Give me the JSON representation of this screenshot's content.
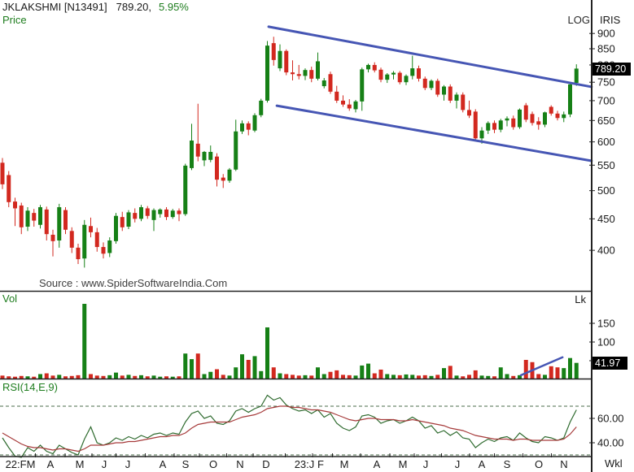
{
  "header": {
    "symbol": "JKLAKSHMI [N13491]",
    "last_price": "789.20,",
    "change_pct": "5.95%"
  },
  "price_panel": {
    "label": "Price",
    "scale_label": "LOG",
    "corner_label": "IRIS",
    "source": "Source : www.SpiderSoftwareIndia.Com",
    "price_badge": "789.20"
  },
  "volume_panel": {
    "label": "Vol",
    "unit_label": "Lk",
    "volume_badge": "41.97"
  },
  "rsi_panel": {
    "label": "RSI(14,E,9)"
  },
  "x_axis": {
    "period_label": "Wkl"
  },
  "colors": {
    "up": "#168016",
    "down": "#d2281f",
    "channel": "#4656b4",
    "rsi_line": "#2f6b2f",
    "rsi_signal": "#a63a3a",
    "guide": "#4a6b4a",
    "axis": "#222222",
    "axis_text": "#1a1a1a",
    "badge_bg": "#000000",
    "badge_fg": "#ffffff",
    "label_green": "#1e7d1e"
  },
  "chart_data": [
    {
      "type": "candlestick",
      "title": "JKLAKSHMI weekly candlestick price",
      "yscale": "log",
      "ylim": [
        370,
        940
      ],
      "y_ticks": [
        900,
        850,
        800,
        750,
        700,
        650,
        600,
        550,
        500,
        450,
        400
      ],
      "last_price": 789.2,
      "candles": [
        [
          555,
          565,
          503,
          512
        ],
        [
          530,
          538,
          470,
          479
        ],
        [
          480,
          487,
          438,
          468
        ],
        [
          473,
          478,
          425,
          436
        ],
        [
          437,
          470,
          430,
          464
        ],
        [
          460,
          467,
          437,
          447
        ],
        [
          440,
          474,
          434,
          470
        ],
        [
          466,
          471,
          415,
          425
        ],
        [
          424,
          432,
          391,
          414
        ],
        [
          415,
          476,
          404,
          470
        ],
        [
          465,
          470,
          425,
          432
        ],
        [
          430,
          436,
          396,
          404
        ],
        [
          404,
          410,
          380,
          387
        ],
        [
          388,
          448,
          375,
          440
        ],
        [
          438,
          452,
          420,
          428
        ],
        [
          428,
          435,
          398,
          405
        ],
        [
          405,
          412,
          388,
          395
        ],
        [
          396,
          420,
          390,
          415
        ],
        [
          414,
          460,
          410,
          455
        ],
        [
          453,
          462,
          430,
          436
        ],
        [
          437,
          465,
          433,
          461
        ],
        [
          460,
          468,
          444,
          450
        ],
        [
          450,
          474,
          446,
          470
        ],
        [
          468,
          472,
          450,
          455
        ],
        [
          448,
          468,
          430,
          465
        ],
        [
          458,
          468,
          452,
          466
        ],
        [
          466,
          470,
          448,
          453
        ],
        [
          453,
          467,
          450,
          464
        ],
        [
          464,
          468,
          446,
          458
        ],
        [
          458,
          553,
          455,
          549
        ],
        [
          544,
          642,
          540,
          603
        ],
        [
          596,
          692,
          558,
          568
        ],
        [
          560,
          580,
          548,
          578
        ],
        [
          561,
          592,
          556,
          578
        ],
        [
          568,
          575,
          508,
          521
        ],
        [
          525,
          532,
          505,
          519
        ],
        [
          519,
          544,
          515,
          541
        ],
        [
          541,
          652,
          538,
          624
        ],
        [
          624,
          650,
          618,
          643
        ],
        [
          643,
          648,
          615,
          628
        ],
        [
          626,
          668,
          622,
          663
        ],
        [
          663,
          705,
          658,
          700
        ],
        [
          700,
          875,
          695,
          860
        ],
        [
          868,
          889,
          798,
          815
        ],
        [
          790,
          864,
          782,
          843
        ],
        [
          843,
          848,
          770,
          778
        ],
        [
          778,
          814,
          755,
          773
        ],
        [
          773,
          800,
          758,
          768
        ],
        [
          768,
          790,
          756,
          785
        ],
        [
          785,
          795,
          750,
          760
        ],
        [
          760,
          838,
          755,
          811
        ],
        [
          739,
          762,
          733,
          755
        ],
        [
          773,
          780,
          718,
          724
        ],
        [
          724,
          740,
          694,
          700
        ],
        [
          700,
          714,
          684,
          690
        ],
        [
          690,
          704,
          674,
          680
        ],
        [
          678,
          702,
          670,
          698
        ],
        [
          698,
          792,
          674,
          787
        ],
        [
          787,
          804,
          778,
          800
        ],
        [
          800,
          808,
          778,
          784
        ],
        [
          786,
          792,
          750,
          757
        ],
        [
          757,
          776,
          748,
          772
        ],
        [
          772,
          782,
          758,
          777
        ],
        [
          777,
          782,
          744,
          750
        ],
        [
          750,
          772,
          742,
          768
        ],
        [
          768,
          828,
          758,
          790
        ],
        [
          790,
          798,
          752,
          760
        ],
        [
          760,
          766,
          728,
          734
        ],
        [
          734,
          758,
          728,
          754
        ],
        [
          754,
          760,
          710,
          716
        ],
        [
          716,
          742,
          700,
          738
        ],
        [
          738,
          744,
          694,
          700
        ],
        [
          700,
          722,
          680,
          716
        ],
        [
          716,
          722,
          670,
          676
        ],
        [
          676,
          700,
          656,
          662
        ],
        [
          672,
          678,
          602,
          608
        ],
        [
          608,
          634,
          596,
          626
        ],
        [
          626,
          648,
          618,
          644
        ],
        [
          644,
          650,
          620,
          628
        ],
        [
          628,
          654,
          622,
          650
        ],
        [
          650,
          660,
          636,
          655
        ],
        [
          655,
          662,
          628,
          634
        ],
        [
          634,
          680,
          630,
          677
        ],
        [
          688,
          694,
          646,
          652
        ],
        [
          666,
          672,
          638,
          644
        ],
        [
          648,
          658,
          628,
          640
        ],
        [
          640,
          672,
          634,
          670
        ],
        [
          684,
          688,
          662,
          667
        ],
        [
          667,
          674,
          650,
          656
        ],
        [
          656,
          672,
          646,
          665
        ],
        [
          665,
          748,
          658,
          744
        ],
        [
          748,
          802,
          740,
          789.2
        ]
      ],
      "trend_channel": {
        "upper": {
          "i1": 42.2,
          "p1": 923,
          "i2": 93.4,
          "p2": 737
        },
        "lower": {
          "i1": 43.5,
          "p1": 687,
          "i2": 93.4,
          "p2": 559
        }
      },
      "x_axis_labels": [
        {
          "label": "22:FM",
          "x": 25
        },
        {
          "label": "A",
          "x": 62
        },
        {
          "label": "M",
          "x": 98
        },
        {
          "label": "J",
          "x": 128
        },
        {
          "label": "J",
          "x": 157
        },
        {
          "label": "A",
          "x": 200
        },
        {
          "label": "S",
          "x": 228
        },
        {
          "label": "O",
          "x": 262
        },
        {
          "label": "N",
          "x": 295
        },
        {
          "label": "D",
          "x": 327
        },
        {
          "label": "23:J",
          "x": 374
        },
        {
          "label": "F",
          "x": 394
        },
        {
          "label": "M",
          "x": 423
        },
        {
          "label": "A",
          "x": 463
        },
        {
          "label": "M",
          "x": 495
        },
        {
          "label": "J",
          "x": 523
        },
        {
          "label": "J",
          "x": 562
        },
        {
          "label": "A",
          "x": 592
        },
        {
          "label": "S",
          "x": 623
        },
        {
          "label": "O",
          "x": 662
        },
        {
          "label": "N",
          "x": 693
        }
      ]
    },
    {
      "type": "bar",
      "title": "Volume (Lk)",
      "ylabel": "Lk",
      "y_ticks": [
        150,
        100,
        50
      ],
      "last_value": 41.97,
      "values": [
        8,
        6,
        5,
        7,
        6,
        5,
        12,
        14,
        8,
        10,
        6,
        7,
        9,
        200,
        12,
        8,
        7,
        9,
        16,
        8,
        10,
        7,
        9,
        6,
        8,
        5,
        6,
        5,
        6,
        67,
        52,
        67,
        12,
        18,
        25,
        10,
        8,
        30,
        65,
        50,
        60,
        20,
        137,
        30,
        14,
        12,
        10,
        8,
        9,
        8,
        30,
        12,
        18,
        22,
        10,
        9,
        8,
        35,
        40,
        14,
        24,
        12,
        10,
        9,
        11,
        10,
        8,
        9,
        7,
        10,
        28,
        34,
        8,
        6,
        10,
        22,
        8,
        7,
        6,
        30,
        12,
        7,
        9,
        50,
        44,
        12,
        10,
        33,
        30,
        28,
        55,
        42
      ],
      "trendline": {
        "i1": 82.2,
        "v1": 9,
        "i2": 88.8,
        "v2": 57
      }
    },
    {
      "type": "line",
      "title": "RSI(14,E,9)",
      "ylim": [
        20,
        90
      ],
      "y_ticks": [
        "60.00",
        "40.00"
      ],
      "guides": [
        70,
        30
      ],
      "series": [
        {
          "name": "RSI",
          "values": [
            44,
            36,
            29,
            28,
            36,
            33,
            38,
            33,
            31,
            38,
            35,
            32,
            30,
            43,
            53,
            40,
            38,
            40,
            44,
            42,
            45,
            43,
            46,
            44,
            47,
            48,
            46,
            48,
            47,
            57,
            64,
            66,
            60,
            62,
            56,
            55,
            58,
            66,
            68,
            65,
            68,
            70,
            79,
            75,
            77,
            71,
            68,
            66,
            67,
            64,
            67,
            61,
            64,
            56,
            52,
            50,
            53,
            62,
            63,
            61,
            56,
            58,
            59,
            56,
            58,
            61,
            58,
            52,
            54,
            48,
            50,
            46,
            49,
            44,
            43,
            36,
            40,
            43,
            41,
            44,
            45,
            42,
            48,
            44,
            41,
            40,
            45,
            44,
            42,
            44,
            57,
            67
          ]
        },
        {
          "name": "Signal",
          "values": [
            48,
            45,
            42,
            39,
            37,
            36,
            36,
            35,
            34,
            35,
            35,
            34,
            33,
            35,
            38,
            38,
            38,
            39,
            40,
            40,
            41,
            41,
            42,
            43,
            44,
            45,
            45,
            46,
            46,
            48,
            52,
            55,
            56,
            57,
            57,
            57,
            57,
            59,
            61,
            62,
            63,
            65,
            68,
            69,
            70,
            70,
            69,
            69,
            68,
            67,
            67,
            66,
            65,
            63,
            61,
            59,
            58,
            59,
            60,
            60,
            59,
            59,
            59,
            58,
            58,
            59,
            58,
            57,
            56,
            55,
            54,
            52,
            51,
            50,
            48,
            46,
            45,
            44,
            43,
            43,
            43,
            42,
            43,
            43,
            42,
            42,
            42,
            42,
            42,
            43,
            47,
            53
          ]
        }
      ]
    }
  ]
}
